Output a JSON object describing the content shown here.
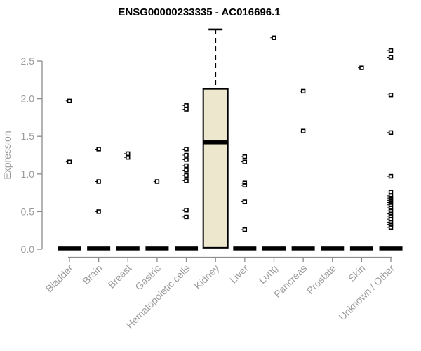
{
  "chart_data": {
    "type": "boxplot",
    "title": "ENSG00000233335 - AC016696.1",
    "ylabel": "Expression",
    "xlabel": "",
    "ylim": [
      0,
      2.95
    ],
    "yticks": [
      "0.0",
      "0.5",
      "1.0",
      "1.5",
      "2.0",
      "2.5"
    ],
    "grid": false,
    "legend": "none",
    "groups": [
      {
        "label": "Bladder",
        "median": 0.01,
        "points": [
          1.97,
          1.16
        ]
      },
      {
        "label": "Brain",
        "median": 0.01,
        "points": [
          1.33,
          0.9,
          0.5
        ]
      },
      {
        "label": "Breast",
        "median": 0.01,
        "points": [
          1.27,
          1.22
        ]
      },
      {
        "label": "Gastric",
        "median": 0.01,
        "points": [
          0.9
        ]
      },
      {
        "label": "Hematopoietic cells",
        "median": 0.01,
        "points": [
          1.91,
          1.86,
          1.33,
          1.25,
          1.19,
          1.11,
          1.05,
          0.98,
          0.91,
          0.52,
          0.43
        ]
      },
      {
        "label": "Kidney",
        "median": 1.42,
        "box": {
          "low": 0.02,
          "q1": 0.02,
          "median": 1.42,
          "q3": 2.13,
          "high": 2.92
        },
        "points": []
      },
      {
        "label": "Liver",
        "median": 0.01,
        "points": [
          1.23,
          1.16,
          0.88,
          0.85,
          0.63,
          0.26
        ]
      },
      {
        "label": "Lung",
        "median": 0.01,
        "points": [
          2.81
        ]
      },
      {
        "label": "Pancreas",
        "median": 0.01,
        "points": [
          2.1,
          1.57
        ]
      },
      {
        "label": "Prostate",
        "median": 0.01,
        "points": []
      },
      {
        "label": "Skin",
        "median": 0.01,
        "points": [
          2.41
        ]
      },
      {
        "label": "Unknown / Other",
        "median": 0.01,
        "points": [
          2.64,
          2.55,
          2.05,
          1.55,
          0.97,
          0.76,
          0.71,
          0.68,
          0.65,
          0.62,
          0.59,
          0.55,
          0.51,
          0.47,
          0.44,
          0.4,
          0.36,
          0.33,
          0.29
        ]
      }
    ],
    "colors": {
      "box_fill": "#ede8cd",
      "box_stroke": "#000000",
      "median": "#000000",
      "point": "#000000",
      "axis_line": "#8c8c8c",
      "axis_text": "#9b9b9b",
      "title_text": "#000000"
    }
  }
}
